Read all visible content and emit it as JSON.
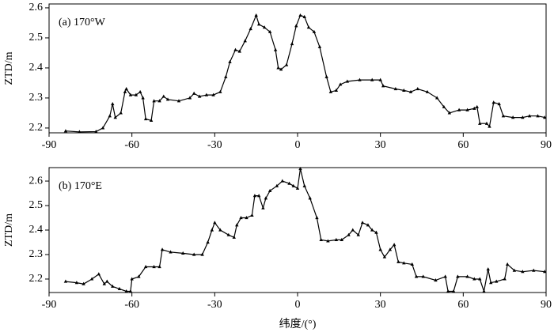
{
  "chart_data": [
    {
      "type": "line",
      "title": "(a) 170°W",
      "ylabel": "ZTD/m",
      "color": "#000000",
      "x": [
        -84,
        -79,
        -73,
        -70.5,
        -68,
        -67,
        -66,
        -64,
        -62.5,
        -62,
        -60.5,
        -58.5,
        -57,
        -56,
        -55,
        -53,
        -52,
        -50,
        -48.5,
        -47,
        -43,
        -39,
        -37.5,
        -35.5,
        -33,
        -30.5,
        -28,
        -26,
        -24.5,
        -22.5,
        -21,
        -19,
        -17,
        -15,
        -14,
        -12,
        -10,
        -8,
        -7,
        -6,
        -4,
        -2,
        -0.5,
        1,
        2.5,
        4,
        6,
        8,
        10.5,
        12,
        14,
        15.5,
        18,
        22.5,
        27,
        30,
        31,
        35.5,
        38.5,
        41,
        43.5,
        47,
        50.5,
        53,
        55,
        58.5,
        61.5,
        64,
        65,
        66,
        68.5,
        69.5,
        71,
        73,
        74.5,
        78,
        81.5,
        84,
        87,
        89.5
      ],
      "values": [
        2.19,
        2.187,
        2.188,
        2.2,
        2.24,
        2.28,
        2.235,
        2.25,
        2.32,
        2.33,
        2.31,
        2.31,
        2.32,
        2.3,
        2.23,
        2.225,
        2.29,
        2.29,
        2.305,
        2.295,
        2.29,
        2.3,
        2.315,
        2.305,
        2.31,
        2.31,
        2.32,
        2.37,
        2.42,
        2.46,
        2.455,
        2.49,
        2.53,
        2.575,
        2.545,
        2.535,
        2.52,
        2.46,
        2.4,
        2.395,
        2.41,
        2.48,
        2.54,
        2.575,
        2.57,
        2.535,
        2.52,
        2.47,
        2.37,
        2.32,
        2.325,
        2.345,
        2.355,
        2.36,
        2.36,
        2.36,
        2.34,
        2.33,
        2.325,
        2.32,
        2.33,
        2.32,
        2.3,
        2.27,
        2.25,
        2.26,
        2.26,
        2.265,
        2.27,
        2.215,
        2.215,
        2.205,
        2.285,
        2.28,
        2.24,
        2.235,
        2.235,
        2.24,
        2.24,
        2.235
      ],
      "xlim": [
        -90,
        90
      ],
      "xticks": [
        -90,
        -60,
        -30,
        0,
        30,
        60,
        90
      ],
      "ylim": [
        2.184,
        2.613
      ],
      "yticks": [
        2.2,
        2.3,
        2.4,
        2.5,
        2.6
      ]
    },
    {
      "type": "line",
      "title": "(b) 170°E",
      "ylabel": "ZTD/m",
      "xlabel": "纬度/(°)",
      "color": "#000000",
      "x": [
        -84,
        -80,
        -77.5,
        -74.5,
        -72,
        -70,
        -69,
        -67,
        -64.5,
        -62,
        -60.5,
        -60,
        -57.5,
        -55,
        -52,
        -50,
        -49,
        -46,
        -41.5,
        -37.5,
        -34.5,
        -32.5,
        -31,
        -30,
        -28,
        -25,
        -23,
        -22,
        -20.5,
        -18.5,
        -16.5,
        -15.5,
        -14,
        -12.5,
        -11.5,
        -10,
        -7.5,
        -5.5,
        -3,
        -1.5,
        0,
        1,
        2.5,
        4.5,
        7,
        8.5,
        11,
        14,
        16,
        18.5,
        20,
        22,
        23.5,
        25.5,
        27,
        28.5,
        30,
        31.5,
        33.5,
        35,
        36.5,
        38.5,
        41.5,
        43,
        45.5,
        50,
        53.5,
        54.5,
        56.5,
        58,
        61.5,
        64,
        66,
        67.5,
        69,
        70,
        72,
        75,
        76,
        78.5,
        81.5,
        85.5,
        89.5
      ],
      "values": [
        2.19,
        2.185,
        2.18,
        2.2,
        2.22,
        2.18,
        2.19,
        2.17,
        2.16,
        2.15,
        2.15,
        2.2,
        2.21,
        2.25,
        2.25,
        2.25,
        2.32,
        2.31,
        2.305,
        2.3,
        2.3,
        2.35,
        2.4,
        2.43,
        2.4,
        2.38,
        2.37,
        2.42,
        2.45,
        2.45,
        2.46,
        2.54,
        2.54,
        2.49,
        2.53,
        2.56,
        2.58,
        2.6,
        2.59,
        2.58,
        2.57,
        2.65,
        2.58,
        2.53,
        2.45,
        2.36,
        2.355,
        2.36,
        2.36,
        2.38,
        2.4,
        2.38,
        2.43,
        2.42,
        2.4,
        2.39,
        2.32,
        2.29,
        2.32,
        2.34,
        2.27,
        2.265,
        2.26,
        2.21,
        2.21,
        2.195,
        2.21,
        2.15,
        2.15,
        2.21,
        2.21,
        2.2,
        2.2,
        2.15,
        2.24,
        2.185,
        2.19,
        2.2,
        2.26,
        2.235,
        2.23,
        2.235,
        2.23
      ],
      "xlim": [
        -90,
        90
      ],
      "xticks": [
        -90,
        -60,
        -30,
        0,
        30,
        60,
        90
      ],
      "ylim": [
        2.145,
        2.655
      ],
      "yticks": [
        2.2,
        2.3,
        2.4,
        2.5,
        2.6
      ]
    }
  ]
}
